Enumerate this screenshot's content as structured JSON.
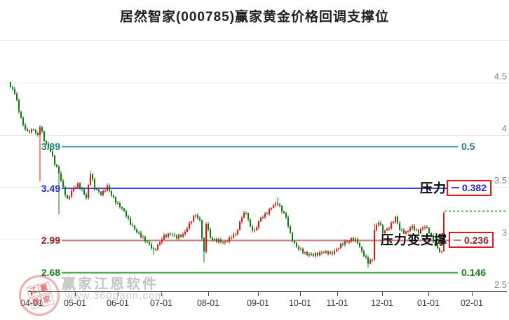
{
  "title": "居然智家(000785)赢家黄金价格回调支撑位",
  "watermark": {
    "brand": "赢家江恩软件",
    "url": "www.360gann.com",
    "stamp_chars": [
      "江",
      "赢",
      "恩",
      "家"
    ]
  },
  "colors": {
    "box_border": "#ea1515",
    "grid": "#ebebeb",
    "axis_line": "#444444",
    "y_axis_text": "#828282",
    "x_axis_text": "#333333"
  },
  "levels": [
    {
      "price": 3.89,
      "price_label": "3.89",
      "ratio_label": "0.5",
      "annotation": "",
      "line_color": "#3f9a9a",
      "label_color": "#1d7d7d",
      "boxed": false
    },
    {
      "price": 3.49,
      "price_label": "3.49",
      "ratio_label": "0.382",
      "annotation": "压力",
      "line_color": "#4040f0",
      "label_color": "#2222dd",
      "boxed": true
    },
    {
      "price": 2.99,
      "price_label": "2.99",
      "ratio_label": "0.236",
      "annotation": "压力变支撑",
      "line_color": "#cc8080",
      "label_color": "#8b1f1f",
      "boxed": true
    },
    {
      "price": 2.68,
      "price_label": "2.68",
      "ratio_label": "0.146",
      "annotation": "",
      "line_color": "#2fa02f",
      "label_color": "#157a15",
      "boxed": false
    }
  ],
  "chart_data": {
    "type": "candlestick",
    "title": "居然智家(000785)赢家黄金价格回调支撑位",
    "convention": "red = up day, green = down day (Chinese convention)",
    "up_color": "#e01212",
    "down_color": "#0a7f0a",
    "ylim": [
      2.5,
      4.9
    ],
    "grid": true,
    "y_ticks": [
      {
        "label": "4.5",
        "value": 4.5
      },
      {
        "label": "4",
        "value": 4.0
      },
      {
        "label": "3.5",
        "value": 3.5
      },
      {
        "label": "3",
        "value": 3.0
      },
      {
        "label": "2.5",
        "value": 2.5
      }
    ],
    "x_ticks": [
      {
        "label": "04-01",
        "x": 45
      },
      {
        "label": "05-01",
        "x": 107
      },
      {
        "label": "06-01",
        "x": 168
      },
      {
        "label": "07-01",
        "x": 230
      },
      {
        "label": "08-01",
        "x": 297
      },
      {
        "label": "09-01",
        "x": 368
      },
      {
        "label": "10-01",
        "x": 428
      },
      {
        "label": "11-01",
        "x": 481
      },
      {
        "label": "12-01",
        "x": 545
      },
      {
        "label": "01-01",
        "x": 611
      },
      {
        "label": "02-01",
        "x": 673
      }
    ],
    "num_days": 207,
    "keypoints_note": "estimated close price path [trading-day index, price] traced from the chart",
    "keypoints": [
      [
        0,
        4.46
      ],
      [
        2,
        4.4
      ],
      [
        4,
        4.24
      ],
      [
        6,
        4.1
      ],
      [
        8,
        4.02
      ],
      [
        11,
        4.06
      ],
      [
        13,
        3.99
      ],
      [
        14,
        4.08
      ],
      [
        16,
        3.95
      ],
      [
        19,
        3.85
      ],
      [
        21,
        3.72
      ],
      [
        23,
        3.64
      ],
      [
        25,
        3.5
      ],
      [
        27,
        3.37
      ],
      [
        30,
        3.5
      ],
      [
        32,
        3.53
      ],
      [
        34,
        3.46
      ],
      [
        36,
        3.4
      ],
      [
        38,
        3.64
      ],
      [
        40,
        3.48
      ],
      [
        43,
        3.44
      ],
      [
        46,
        3.5
      ],
      [
        48,
        3.42
      ],
      [
        51,
        3.34
      ],
      [
        54,
        3.26
      ],
      [
        57,
        3.16
      ],
      [
        60,
        3.06
      ],
      [
        63,
        3.02
      ],
      [
        66,
        2.94
      ],
      [
        68,
        2.89
      ],
      [
        70,
        2.95
      ],
      [
        73,
        3.02
      ],
      [
        76,
        3.06
      ],
      [
        79,
        3.01
      ],
      [
        82,
        3.05
      ],
      [
        85,
        3.14
      ],
      [
        88,
        3.24
      ],
      [
        90,
        3.18
      ],
      [
        92,
        2.86
      ],
      [
        93,
        3.15
      ],
      [
        95,
        3.02
      ],
      [
        98,
        2.98
      ],
      [
        101,
        2.97
      ],
      [
        104,
        3.0
      ],
      [
        107,
        3.05
      ],
      [
        110,
        3.22
      ],
      [
        112,
        3.25
      ],
      [
        114,
        3.12
      ],
      [
        116,
        3.08
      ],
      [
        119,
        3.2
      ],
      [
        122,
        3.26
      ],
      [
        125,
        3.32
      ],
      [
        127,
        3.35
      ],
      [
        129,
        3.28
      ],
      [
        131,
        3.2
      ],
      [
        133,
        3.05
      ],
      [
        135,
        2.96
      ],
      [
        137,
        2.9
      ],
      [
        140,
        2.87
      ],
      [
        144,
        2.84
      ],
      [
        148,
        2.88
      ],
      [
        152,
        2.86
      ],
      [
        156,
        2.92
      ],
      [
        159,
        2.97
      ],
      [
        162,
        3.0
      ],
      [
        165,
        2.97
      ],
      [
        167,
        2.89
      ],
      [
        170,
        2.77
      ],
      [
        172,
        2.81
      ],
      [
        173,
        3.1
      ],
      [
        175,
        3.17
      ],
      [
        177,
        3.06
      ],
      [
        180,
        3.12
      ],
      [
        183,
        3.2
      ],
      [
        185,
        3.1
      ],
      [
        188,
        3.06
      ],
      [
        191,
        3.12
      ],
      [
        194,
        3.07
      ],
      [
        197,
        3.12
      ],
      [
        199,
        3.08
      ],
      [
        201,
        2.98
      ],
      [
        203,
        2.9
      ],
      [
        205,
        2.88
      ],
      [
        206,
        3.27
      ]
    ],
    "wicks": [
      {
        "day": 14,
        "low": 3.56
      },
      {
        "day": 23,
        "low": 3.24
      },
      {
        "day": 38,
        "high": 3.66
      },
      {
        "day": 68,
        "low": 2.85
      },
      {
        "day": 92,
        "low": 2.78
      },
      {
        "day": 127,
        "high": 3.4
      },
      {
        "day": 170,
        "low": 2.73
      },
      {
        "day": 173,
        "high": 3.15
      }
    ],
    "last_close_extension": {
      "value": 3.27,
      "style": "green dashed line to right edge"
    }
  }
}
